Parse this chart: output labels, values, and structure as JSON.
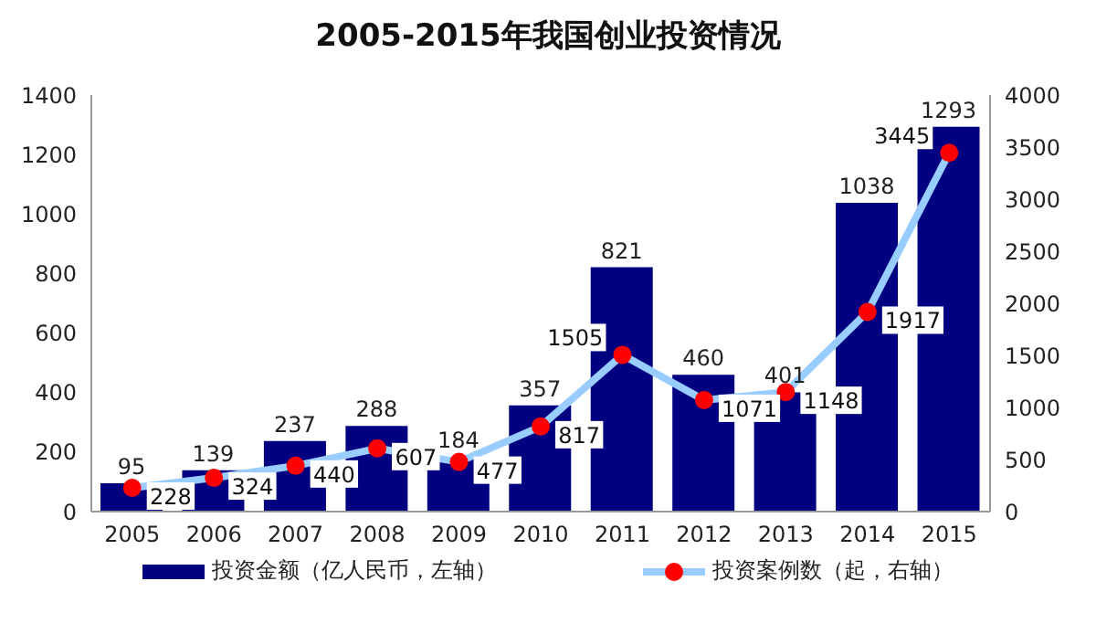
{
  "chart_data": {
    "type": "bar",
    "title": "2005-2015年我国创业投资情况",
    "categories": [
      "2005",
      "2006",
      "2007",
      "2008",
      "2009",
      "2010",
      "2011",
      "2012",
      "2013",
      "2014",
      "2015"
    ],
    "series": [
      {
        "name": "投资金额（亿人民币，左轴）",
        "color": "#000080",
        "values": [
          95,
          139,
          237,
          288,
          184,
          357,
          821,
          460,
          401,
          1038,
          1293
        ]
      },
      {
        "name": "投资案例数（起，右轴）",
        "type": "line",
        "axis": "y2",
        "color": "#99ccff",
        "colors": [
          "#ff0000",
          "#ff0000",
          "#ff0000",
          "#ff0000",
          "#ff0000",
          "#ff0000",
          "#ff0000",
          "#ff0000",
          "#ff0000",
          "#ff0000",
          "#ff0000"
        ],
        "values": [
          228,
          324,
          440,
          607,
          477,
          817,
          1505,
          1071,
          1148,
          1917,
          3445
        ]
      }
    ],
    "ylim": [
      0,
      1400
    ],
    "yticks": [
      0,
      200,
      400,
      600,
      800,
      1000,
      1200,
      1400
    ],
    "y2lim": [
      0,
      4000
    ],
    "y2ticks": [
      0,
      500,
      1000,
      1500,
      2000,
      2500,
      3000,
      3500,
      4000
    ],
    "data_labels": true,
    "grid": false,
    "legend": "bottom",
    "marker": "circle",
    "line_style": "solid"
  }
}
